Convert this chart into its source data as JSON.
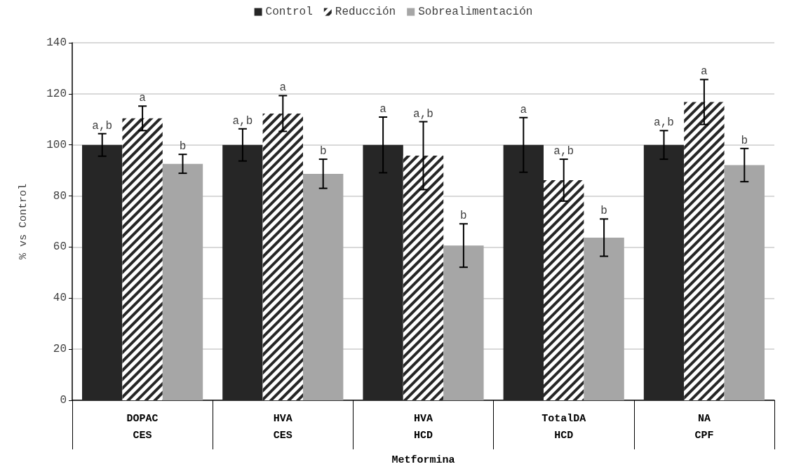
{
  "chart_data": {
    "type": "bar",
    "xlabel": "Metformina",
    "ylabel": "% vs Control",
    "categories": [
      "DOPAC\nCES",
      "HVA\nCES",
      "HVA\nHCD",
      "TotalDA\nHCD",
      "NA\nCPF"
    ],
    "series": [
      {
        "name": "Control",
        "color": "#262626",
        "values": [
          100,
          100,
          100,
          100,
          100
        ],
        "errors": [
          4.4,
          6.3,
          10.9,
          10.7,
          5.6
        ],
        "value_labels": [
          "a,b",
          "a,b",
          "a",
          "a",
          "a,b"
        ]
      },
      {
        "name": "Reducción",
        "color": "#262626",
        "values": [
          110.4,
          112.3,
          95.8,
          86.2,
          116.8
        ],
        "errors": [
          4.8,
          7,
          13.3,
          8.2,
          8.8
        ],
        "value_labels": [
          "a",
          "a",
          "a,b",
          "a,b",
          "a"
        ]
      },
      {
        "name": "Sobrealimentación",
        "color": "#a6a6a6",
        "values": [
          92.6,
          88.7,
          60.6,
          63.7,
          92.1
        ],
        "errors": [
          3.7,
          5.7,
          8.5,
          7.3,
          6.5
        ],
        "value_labels": [
          "b",
          "b",
          "b",
          "b",
          "b"
        ]
      }
    ],
    "ylim": [
      0,
      140
    ],
    "yticks": [
      0,
      20,
      40,
      60,
      80,
      100,
      120,
      140
    ],
    "grid": "y",
    "legend": "top"
  }
}
